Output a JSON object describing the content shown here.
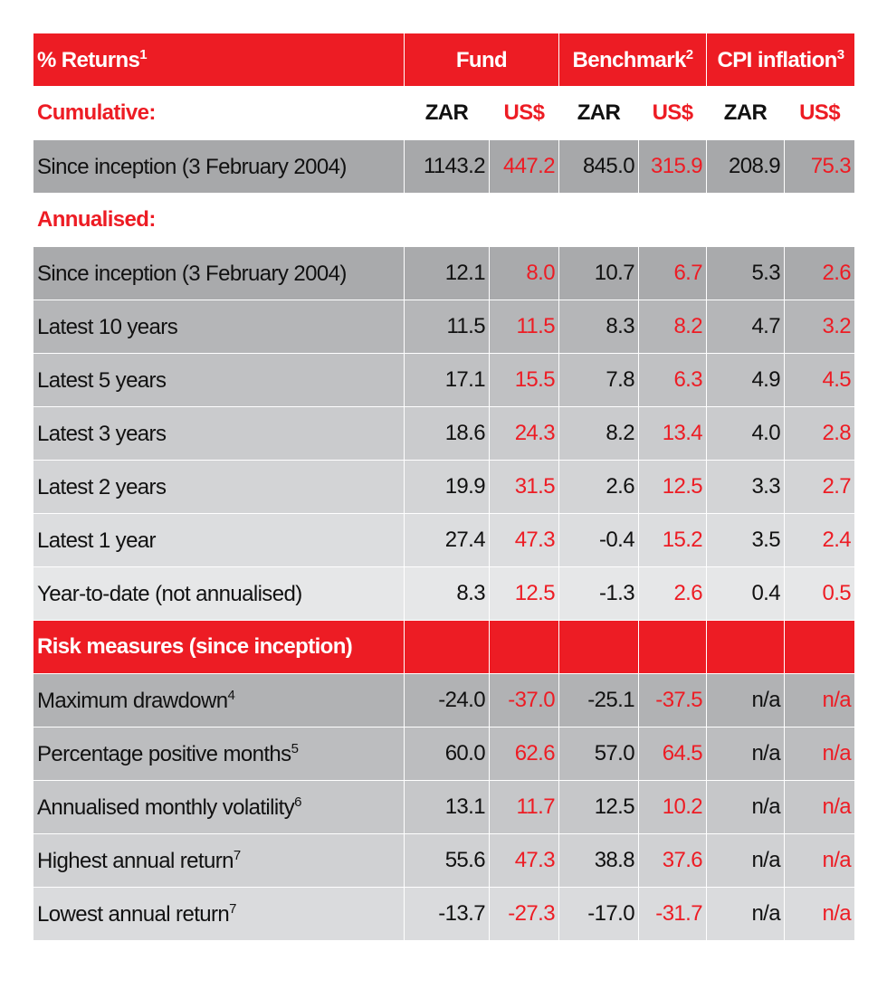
{
  "header": {
    "title": "% Returns",
    "title_note": "1",
    "groups": [
      {
        "label": "Fund",
        "note": ""
      },
      {
        "label": "Benchmark",
        "note": "2"
      },
      {
        "label": "CPI inflation",
        "note": "3"
      }
    ]
  },
  "currencies": [
    "ZAR",
    "US$",
    "ZAR",
    "US$",
    "ZAR",
    "US$"
  ],
  "colors": {
    "accent": "#ed1c24",
    "usd_text": "#ed1c24"
  },
  "cumulative": {
    "label": "Cumulative:",
    "rows": [
      {
        "label": "Since inception (3 February 2004)",
        "note": "",
        "values": [
          "1143.2",
          "447.2",
          "845.0",
          "315.9",
          "208.9",
          "75.3"
        ],
        "bg": "#a7a8aa"
      }
    ]
  },
  "annualised": {
    "label": "Annualised:",
    "rows": [
      {
        "label": "Since inception (3 February 2004)",
        "note": "",
        "values": [
          "12.1",
          "8.0",
          "10.7",
          "6.7",
          "5.3",
          "2.6"
        ],
        "bg": "#a9aaac"
      },
      {
        "label": "Latest 10 years",
        "note": "",
        "values": [
          "11.5",
          "11.5",
          "8.3",
          "8.2",
          "4.7",
          "3.2"
        ],
        "bg": "#b5b6b8"
      },
      {
        "label": "Latest 5 years",
        "note": "",
        "values": [
          "17.1",
          "15.5",
          "7.8",
          "6.3",
          "4.9",
          "4.5"
        ],
        "bg": "#c0c1c3"
      },
      {
        "label": "Latest 3 years",
        "note": "",
        "values": [
          "18.6",
          "24.3",
          "8.2",
          "13.4",
          "4.0",
          "2.8"
        ],
        "bg": "#cacbcd"
      },
      {
        "label": "Latest 2 years",
        "note": "",
        "values": [
          "19.9",
          "31.5",
          "2.6",
          "12.5",
          "3.3",
          "2.7"
        ],
        "bg": "#d3d4d6"
      },
      {
        "label": "Latest 1 year",
        "note": "",
        "values": [
          "27.4",
          "47.3",
          "-0.4",
          "15.2",
          "3.5",
          "2.4"
        ],
        "bg": "#dcdddf"
      },
      {
        "label": "Year-to-date (not annualised)",
        "note": "",
        "values": [
          "8.3",
          "12.5",
          "-1.3",
          "2.6",
          "0.4",
          "0.5"
        ],
        "bg": "#e6e7e8"
      }
    ]
  },
  "risk": {
    "label": "Risk measures (since inception)",
    "rows": [
      {
        "label": "Maximum drawdown",
        "note": "4",
        "values": [
          "-24.0",
          "-37.0",
          "-25.1",
          "-37.5",
          "n/a",
          "n/a"
        ],
        "bg": "#b1b2b4"
      },
      {
        "label": "Percentage positive months",
        "note": "5",
        "values": [
          "60.0",
          "62.6",
          "57.0",
          "64.5",
          "n/a",
          "n/a"
        ],
        "bg": "#bcbdbf"
      },
      {
        "label": "Annualised monthly volatility",
        "note": "6",
        "values": [
          "13.1",
          "11.7",
          "12.5",
          "10.2",
          "n/a",
          "n/a"
        ],
        "bg": "#c6c7c9"
      },
      {
        "label": "Highest annual return",
        "note": "7",
        "values": [
          "55.6",
          "47.3",
          "38.8",
          "37.6",
          "n/a",
          "n/a"
        ],
        "bg": "#d0d1d3"
      },
      {
        "label": "Lowest annual return",
        "note": "7",
        "values": [
          "-13.7",
          "-27.3",
          "-17.0",
          "-31.7",
          "n/a",
          "n/a"
        ],
        "bg": "#dadbdd"
      }
    ]
  }
}
